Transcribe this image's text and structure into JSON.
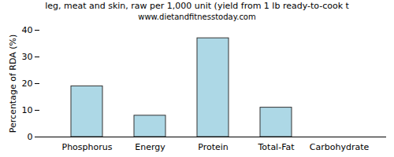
{
  "chart_data": {
    "type": "bar",
    "title": "leg, meat and skin, raw per 1,000 unit (yield from 1 lb ready-to-cook t",
    "subtitle": "www.dietandfitnesstoday.com",
    "y_label": "Percentage of RDA (%)",
    "categories": [
      "Phosphorus",
      "Energy",
      "Protein",
      "Total-Fat",
      "Carbohydrate"
    ],
    "values": [
      19,
      8,
      37,
      11,
      0
    ],
    "color": "#add8e6",
    "ylim": [
      0,
      40
    ],
    "yticks": [
      0,
      10,
      20,
      30,
      40
    ],
    "grid": false
  }
}
